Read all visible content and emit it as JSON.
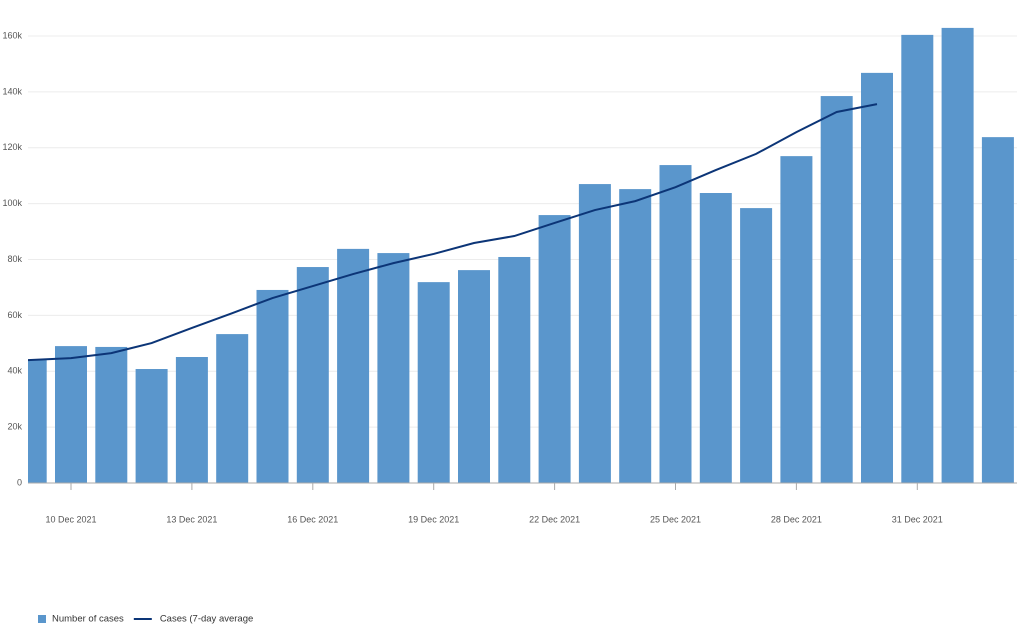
{
  "chart_data": {
    "type": "bar",
    "categories": [
      null,
      "10 Dec 2021",
      null,
      null,
      "13 Dec 2021",
      null,
      null,
      "16 Dec 2021",
      null,
      null,
      "19 Dec 2021",
      null,
      null,
      "22 Dec 2021",
      null,
      null,
      "25 Dec 2021",
      null,
      null,
      "28 Dec 2021",
      null,
      null,
      "31 Dec 2021",
      null,
      null
    ],
    "series": [
      {
        "name": "Number of cases",
        "type": "bar",
        "color": "#5a96cc",
        "values": [
          44000,
          49000,
          48700,
          40800,
          45100,
          53300,
          69100,
          77300,
          83800,
          82300,
          71900,
          76200,
          80900,
          95900,
          107000,
          105200,
          113800,
          103800,
          98400,
          117000,
          138500,
          146800,
          160400,
          162900,
          123800
        ]
      },
      {
        "name": "Cases (7-day average",
        "type": "line",
        "color": "#0c3577",
        "values": [
          44000,
          44700,
          46500,
          50100,
          55500,
          60800,
          66200,
          70500,
          74800,
          78700,
          82000,
          85900,
          88400,
          93100,
          97700,
          100900,
          105900,
          112000,
          117800,
          125600,
          132800,
          135600,
          null,
          null,
          null
        ]
      }
    ],
    "ylim": [
      0,
      160000
    ],
    "yticks": [
      0,
      {
        "value": 20000,
        "label": "20k"
      },
      {
        "value": 40000,
        "label": "40k"
      },
      {
        "value": 60000,
        "label": "60k"
      },
      {
        "value": 80000,
        "label": "80k"
      },
      {
        "value": 100000,
        "label": "100k"
      },
      {
        "value": 120000,
        "label": "120k"
      },
      {
        "value": 140000,
        "label": "140k"
      },
      {
        "value": 160000,
        "label": "160k"
      }
    ],
    "grid": true
  }
}
